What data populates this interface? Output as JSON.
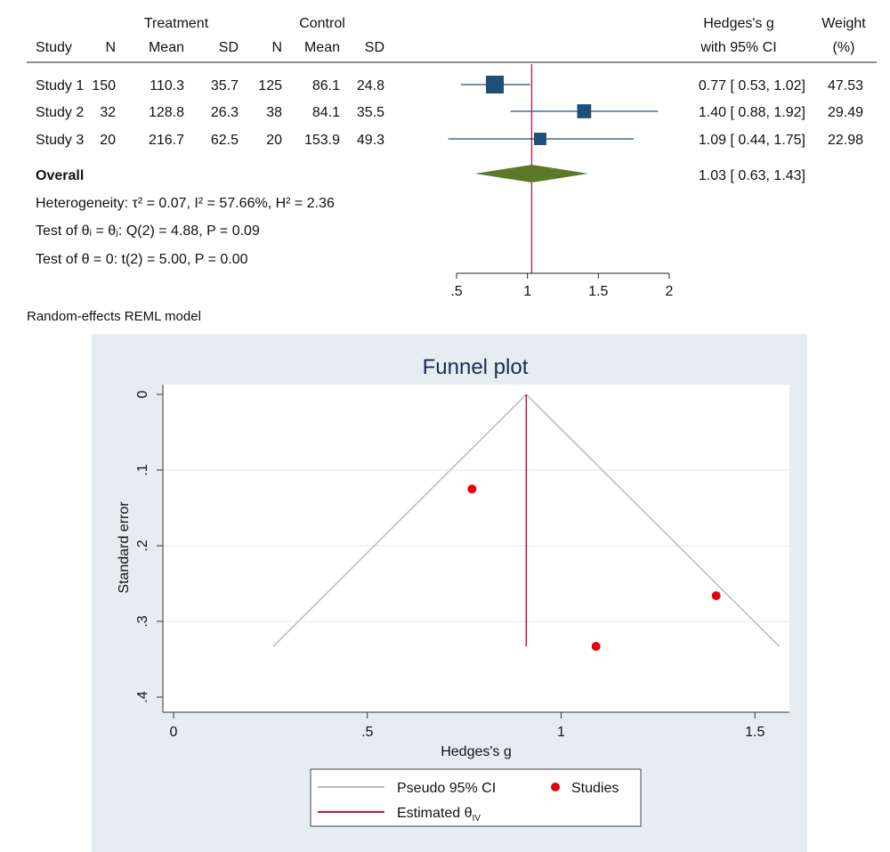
{
  "chart_data": [
    {
      "type": "forest",
      "headers": {
        "group1": "Treatment",
        "group2": "Control",
        "study": "Study",
        "n": "N",
        "mean": "Mean",
        "sd": "SD",
        "effect_top": "Hedges's g",
        "effect_bottom": "with 95% CI",
        "weight_top": "Weight",
        "weight_bottom": "(%)"
      },
      "studies": [
        {
          "name": "Study 1",
          "t_n": "150",
          "t_mean": "110.3",
          "t_sd": "35.7",
          "c_n": "125",
          "c_mean": "86.1",
          "c_sd": "24.8",
          "g": 0.77,
          "lo": 0.53,
          "hi": 1.02,
          "ci_text": "0.77 [ 0.53,  1.02]",
          "weight": 47.53,
          "weight_text": "47.53"
        },
        {
          "name": "Study 2",
          "t_n": "32",
          "t_mean": "128.8",
          "t_sd": "26.3",
          "c_n": "38",
          "c_mean": "84.1",
          "c_sd": "35.5",
          "g": 1.4,
          "lo": 0.88,
          "hi": 1.92,
          "ci_text": "1.40 [ 0.88,  1.92]",
          "weight": 29.49,
          "weight_text": "29.49"
        },
        {
          "name": "Study 3",
          "t_n": "20",
          "t_mean": "216.7",
          "t_sd": "62.5",
          "c_n": "20",
          "c_mean": "153.9",
          "c_sd": "49.3",
          "g": 1.09,
          "lo": 0.44,
          "hi": 1.75,
          "ci_text": "1.09 [ 0.44,  1.75]",
          "weight": 22.98,
          "weight_text": "22.98"
        }
      ],
      "overall": {
        "label": "Overall",
        "g": 1.03,
        "lo": 0.63,
        "hi": 1.43,
        "ci_text": "1.03 [ 0.63,  1.43]"
      },
      "stats": [
        "Heterogeneity: τ² = 0.07, I² = 57.66%, H² = 2.36",
        "Test of θᵢ = θⱼ: Q(2) = 4.88, P = 0.09",
        "Test of θ = 0: t(2) = 5.00, P = 0.00"
      ],
      "xticks": [
        0.5,
        1,
        1.5,
        2
      ],
      "xtick_labels": [
        ".5",
        "1",
        "1.5",
        "2"
      ],
      "xlim": [
        0.5,
        2
      ],
      "note": "Random-effects REML model",
      "colors": {
        "marker": "#1f4e79",
        "diamond": "#5a7a2a",
        "ref_line": "#c0173a"
      }
    },
    {
      "type": "scatter",
      "title": "Funnel plot",
      "xlabel": "Hedges's g",
      "ylabel": "Standard error",
      "xlim": [
        0,
        1.6
      ],
      "ylim": [
        0,
        0.4
      ],
      "xticks": [
        0,
        0.5,
        1,
        1.5
      ],
      "xtick_labels": [
        "0",
        ".5",
        "1",
        "1.5"
      ],
      "yticks": [
        0,
        0.1,
        0.2,
        0.3,
        0.4
      ],
      "ytick_labels": [
        "0",
        ".1",
        ".2",
        ".3",
        ".4"
      ],
      "points": [
        {
          "x": 0.77,
          "y": 0.125
        },
        {
          "x": 1.4,
          "y": 0.266
        },
        {
          "x": 1.09,
          "y": 0.333
        }
      ],
      "estimate": 0.91,
      "max_se": 0.333,
      "legend": {
        "ci": "Pseudo 95% CI",
        "studies": "Studies",
        "est": "Estimated θ",
        "est_sub": "IV"
      },
      "legend_position": "bottom",
      "colors": {
        "points": "#e8000b",
        "ci": "#bbbbbb",
        "est": "#c0173a",
        "panel": "#e6edf1"
      }
    }
  ]
}
